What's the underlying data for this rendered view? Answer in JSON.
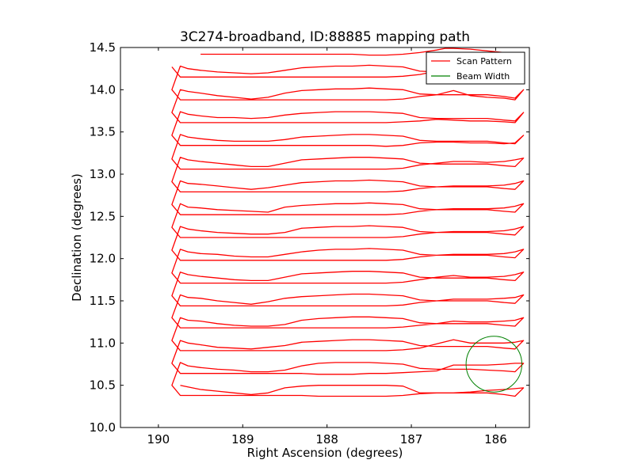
{
  "chart_data": {
    "type": "line",
    "title": "3C274-broadband, ID:88885 mapping path",
    "xlabel": "Right Ascension (degrees)",
    "ylabel": "Declination (degrees)",
    "xlim": [
      190.45,
      185.6
    ],
    "ylim": [
      10.0,
      14.5
    ],
    "xticks": [
      190,
      189,
      188,
      187,
      186
    ],
    "xtick_labels": [
      "190",
      "189",
      "188",
      "187",
      "186"
    ],
    "yticks": [
      10.0,
      10.5,
      11.0,
      11.5,
      12.0,
      12.5,
      13.0,
      13.5,
      14.0,
      14.5
    ],
    "ytick_labels": [
      "10.0",
      "10.5",
      "11.0",
      "11.5",
      "12.0",
      "12.5",
      "13.0",
      "13.5",
      "14.0",
      "14.5"
    ],
    "grid": false,
    "legend_position": "top-right",
    "series": [
      {
        "name": "Scan Pattern",
        "color": "#ff0000",
        "ra_step_deg": 0.1,
        "scan_ra": [
          189.74,
          189.65,
          189.5,
          189.3,
          189.1,
          188.9,
          188.7,
          188.5,
          188.3,
          188.1,
          187.9,
          187.7,
          187.5,
          187.3,
          187.1,
          186.9,
          186.7,
          186.5,
          186.3,
          186.1,
          185.9,
          185.77
        ],
        "scans": [
          {
            "fwd": [
              10.5,
              10.48,
              10.45,
              10.43,
              10.41,
              10.39,
              10.41,
              10.47,
              10.49,
              10.5,
              10.5,
              10.5,
              10.5,
              10.5,
              10.49,
              10.41,
              10.41,
              10.41,
              10.41,
              10.41,
              10.39,
              10.37
            ],
            "back": [
              10.38,
              10.38,
              10.38,
              10.38,
              10.38,
              10.38,
              10.38,
              10.38,
              10.38,
              10.37,
              10.37,
              10.37,
              10.37,
              10.37,
              10.38,
              10.4,
              10.41,
              10.41,
              10.42,
              10.44,
              10.45,
              10.46
            ]
          },
          {
            "fwd": [
              10.77,
              10.73,
              10.71,
              10.69,
              10.68,
              10.66,
              10.66,
              10.68,
              10.73,
              10.76,
              10.77,
              10.77,
              10.77,
              10.76,
              10.75,
              10.7,
              10.69,
              10.69,
              10.69,
              10.68,
              10.67,
              10.66
            ],
            "back": [
              10.64,
              10.64,
              10.64,
              10.64,
              10.64,
              10.64,
              10.64,
              10.64,
              10.64,
              10.63,
              10.63,
              10.63,
              10.64,
              10.64,
              10.65,
              10.66,
              10.67,
              10.74,
              10.74,
              10.74,
              10.75,
              10.76
            ]
          },
          {
            "fwd": [
              11.03,
              11.0,
              10.98,
              10.95,
              10.94,
              10.93,
              10.95,
              10.97,
              11.01,
              11.02,
              11.03,
              11.04,
              11.04,
              11.03,
              11.02,
              10.97,
              10.96,
              10.96,
              10.96,
              10.96,
              10.94,
              10.93
            ],
            "back": [
              10.91,
              10.91,
              10.91,
              10.91,
              10.91,
              10.91,
              10.91,
              10.91,
              10.91,
              10.91,
              10.91,
              10.91,
              10.91,
              10.91,
              10.92,
              10.94,
              10.99,
              11.04,
              11.0,
              11.0,
              11.0,
              11.01
            ]
          },
          {
            "fwd": [
              11.3,
              11.27,
              11.26,
              11.23,
              11.21,
              11.2,
              11.2,
              11.22,
              11.27,
              11.29,
              11.3,
              11.31,
              11.31,
              11.3,
              11.29,
              11.24,
              11.23,
              11.23,
              11.23,
              11.23,
              11.21,
              11.2
            ],
            "back": [
              11.18,
              11.18,
              11.18,
              11.18,
              11.18,
              11.18,
              11.18,
              11.18,
              11.18,
              11.18,
              11.18,
              11.18,
              11.18,
              11.18,
              11.19,
              11.21,
              11.23,
              11.26,
              11.25,
              11.25,
              11.26,
              11.27
            ]
          },
          {
            "fwd": [
              11.57,
              11.54,
              11.53,
              11.5,
              11.48,
              11.46,
              11.49,
              11.53,
              11.55,
              11.56,
              11.57,
              11.58,
              11.58,
              11.57,
              11.56,
              11.51,
              11.5,
              11.5,
              11.5,
              11.5,
              11.48,
              11.47
            ],
            "back": [
              11.44,
              11.44,
              11.44,
              11.44,
              11.44,
              11.44,
              11.44,
              11.44,
              11.44,
              11.44,
              11.44,
              11.44,
              11.44,
              11.44,
              11.45,
              11.48,
              11.5,
              11.52,
              11.52,
              11.52,
              11.53,
              11.54
            ]
          },
          {
            "fwd": [
              11.84,
              11.81,
              11.79,
              11.77,
              11.75,
              11.74,
              11.74,
              11.78,
              11.82,
              11.83,
              11.84,
              11.85,
              11.85,
              11.84,
              11.83,
              11.78,
              11.77,
              11.77,
              11.77,
              11.77,
              11.75,
              11.74
            ],
            "back": [
              11.71,
              11.71,
              11.71,
              11.71,
              11.71,
              11.71,
              11.71,
              11.71,
              11.71,
              11.71,
              11.71,
              11.71,
              11.71,
              11.71,
              11.72,
              11.75,
              11.78,
              11.8,
              11.78,
              11.78,
              11.79,
              11.81
            ]
          },
          {
            "fwd": [
              12.11,
              12.08,
              12.06,
              12.05,
              12.03,
              12.02,
              12.02,
              12.05,
              12.08,
              12.1,
              12.11,
              12.11,
              12.12,
              12.11,
              12.1,
              12.05,
              12.04,
              12.04,
              12.04,
              12.04,
              12.02,
              12.01
            ],
            "back": [
              11.98,
              11.98,
              11.98,
              11.98,
              11.98,
              11.98,
              11.98,
              11.98,
              11.98,
              11.98,
              11.98,
              11.98,
              11.98,
              11.98,
              11.99,
              12.02,
              12.04,
              12.05,
              12.05,
              12.05,
              12.06,
              12.08
            ]
          },
          {
            "fwd": [
              12.38,
              12.35,
              12.33,
              12.31,
              12.3,
              12.29,
              12.29,
              12.31,
              12.36,
              12.37,
              12.38,
              12.38,
              12.39,
              12.38,
              12.37,
              12.32,
              12.31,
              12.31,
              12.31,
              12.31,
              12.29,
              12.28
            ],
            "back": [
              12.25,
              12.25,
              12.25,
              12.25,
              12.25,
              12.25,
              12.25,
              12.25,
              12.25,
              12.25,
              12.25,
              12.25,
              12.25,
              12.25,
              12.26,
              12.29,
              12.31,
              12.32,
              12.32,
              12.32,
              12.33,
              12.35
            ]
          },
          {
            "fwd": [
              12.65,
              12.61,
              12.6,
              12.58,
              12.57,
              12.56,
              12.55,
              12.61,
              12.63,
              12.64,
              12.65,
              12.65,
              12.66,
              12.65,
              12.64,
              12.59,
              12.58,
              12.58,
              12.58,
              12.58,
              12.56,
              12.55
            ],
            "back": [
              12.52,
              12.52,
              12.52,
              12.52,
              12.52,
              12.52,
              12.52,
              12.52,
              12.52,
              12.52,
              12.52,
              12.52,
              12.52,
              12.52,
              12.53,
              12.56,
              12.58,
              12.59,
              12.59,
              12.59,
              12.6,
              12.62
            ]
          },
          {
            "fwd": [
              12.92,
              12.89,
              12.88,
              12.86,
              12.84,
              12.82,
              12.84,
              12.87,
              12.9,
              12.91,
              12.92,
              12.92,
              12.93,
              12.92,
              12.91,
              12.86,
              12.85,
              12.85,
              12.85,
              12.85,
              12.83,
              12.82
            ],
            "back": [
              12.79,
              12.79,
              12.79,
              12.79,
              12.79,
              12.79,
              12.79,
              12.79,
              12.79,
              12.79,
              12.79,
              12.79,
              12.79,
              12.79,
              12.8,
              12.83,
              12.85,
              12.86,
              12.86,
              12.86,
              12.87,
              12.89
            ]
          },
          {
            "fwd": [
              13.2,
              13.17,
              13.15,
              13.13,
              13.11,
              13.09,
              13.09,
              13.13,
              13.17,
              13.18,
              13.19,
              13.2,
              13.2,
              13.19,
              13.18,
              13.13,
              13.12,
              13.12,
              13.12,
              13.12,
              13.1,
              13.09
            ],
            "back": [
              13.06,
              13.06,
              13.06,
              13.06,
              13.06,
              13.06,
              13.06,
              13.06,
              13.06,
              13.06,
              13.06,
              13.06,
              13.06,
              13.06,
              13.07,
              13.11,
              13.13,
              13.15,
              13.15,
              13.14,
              13.15,
              13.17
            ]
          },
          {
            "fwd": [
              13.47,
              13.44,
              13.42,
              13.4,
              13.39,
              13.39,
              13.39,
              13.41,
              13.44,
              13.45,
              13.46,
              13.47,
              13.47,
              13.46,
              13.45,
              13.4,
              13.39,
              13.39,
              13.39,
              13.39,
              13.37,
              13.36
            ],
            "back": [
              13.34,
              13.34,
              13.34,
              13.34,
              13.34,
              13.34,
              13.34,
              13.34,
              13.34,
              13.34,
              13.34,
              13.34,
              13.34,
              13.33,
              13.34,
              13.37,
              13.38,
              13.38,
              13.37,
              13.37,
              13.36,
              13.37
            ]
          },
          {
            "fwd": [
              13.74,
              13.71,
              13.69,
              13.67,
              13.67,
              13.66,
              13.67,
              13.7,
              13.72,
              13.73,
              13.74,
              13.74,
              13.74,
              13.73,
              13.72,
              13.67,
              13.66,
              13.66,
              13.66,
              13.66,
              13.64,
              13.63
            ],
            "back": [
              13.61,
              13.61,
              13.61,
              13.61,
              13.61,
              13.61,
              13.61,
              13.61,
              13.61,
              13.61,
              13.61,
              13.61,
              13.61,
              13.61,
              13.62,
              13.63,
              13.65,
              13.64,
              13.63,
              13.63,
              13.62,
              13.61
            ]
          },
          {
            "fwd": [
              14.0,
              13.98,
              13.96,
              13.93,
              13.91,
              13.89,
              13.91,
              13.96,
              13.99,
              14.0,
              14.01,
              14.01,
              14.02,
              14.01,
              14.0,
              13.95,
              13.94,
              13.94,
              13.94,
              13.94,
              13.92,
              13.9
            ],
            "back": [
              13.88,
              13.88,
              13.88,
              13.88,
              13.88,
              13.88,
              13.88,
              13.88,
              13.88,
              13.88,
              13.88,
              13.88,
              13.88,
              13.88,
              13.89,
              13.92,
              13.94,
              13.99,
              13.93,
              13.91,
              13.9,
              13.88
            ]
          },
          {
            "fwd": [
              14.28,
              14.25,
              14.23,
              14.21,
              14.2,
              14.19,
              14.2,
              14.23,
              14.26,
              14.27,
              14.28,
              14.28,
              14.29,
              14.28,
              14.27,
              14.22,
              14.21,
              14.21,
              14.21,
              14.21,
              14.19,
              14.17
            ],
            "back": [
              14.15,
              14.15,
              14.15,
              14.15,
              14.15,
              14.15,
              14.15,
              14.15,
              14.15,
              14.15,
              14.15,
              14.15,
              14.15,
              14.15,
              14.16,
              14.18,
              14.22,
              14.27,
              14.24,
              14.22,
              14.2,
              14.19
            ]
          }
        ],
        "top_scan": {
          "ra": [
            189.5,
            189.3,
            189.1,
            188.9,
            188.7,
            188.5,
            188.3,
            188.1,
            187.9,
            187.7,
            187.5,
            187.3,
            187.1,
            186.9,
            186.7,
            186.6,
            186.5,
            186.3,
            186.1,
            185.9,
            185.77
          ],
          "dec": [
            14.42,
            14.42,
            14.42,
            14.42,
            14.42,
            14.42,
            14.42,
            14.42,
            14.42,
            14.42,
            14.41,
            14.41,
            14.42,
            14.44,
            14.47,
            14.49,
            14.49,
            14.48,
            14.46,
            14.44,
            14.43
          ]
        }
      },
      {
        "name": "Beam Width",
        "color": "#008000",
        "shape": "circle",
        "center_ra": 186.02,
        "center_dec": 10.75,
        "radius_deg": 0.33
      }
    ]
  }
}
